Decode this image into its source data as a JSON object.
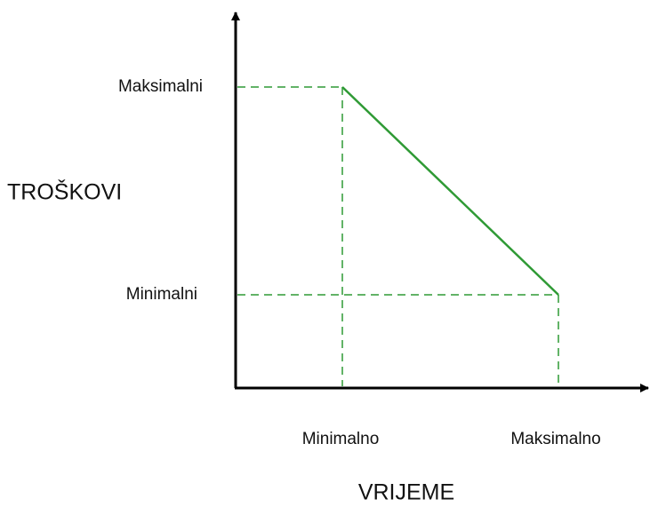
{
  "y_axis": {
    "title": "TROŠKOVI",
    "labels": [
      "Maksimalni",
      "Minimalni"
    ]
  },
  "x_axis": {
    "title": "VRIJEME",
    "labels": [
      "Minimalno",
      "Maksimalno"
    ]
  }
}
